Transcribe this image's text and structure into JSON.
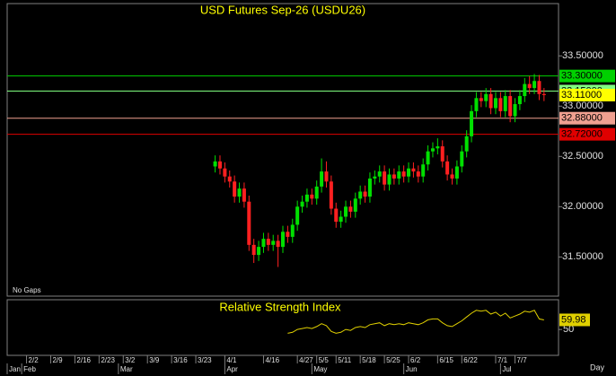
{
  "chart_data": [
    {
      "type": "candlestick",
      "title": "USD Futures Sep-26 (USDU26)",
      "note": "No Gaps",
      "x": [
        43,
        44,
        45,
        46,
        47,
        48,
        49,
        50,
        51,
        52,
        53,
        54,
        55,
        56,
        57,
        58,
        59,
        60,
        61,
        62,
        63,
        64,
        65,
        66,
        67,
        68,
        69,
        70,
        71,
        72,
        73,
        74,
        75,
        76,
        77,
        78,
        79,
        80,
        81,
        82,
        83,
        84,
        85,
        86,
        87,
        88,
        89,
        90,
        91,
        92,
        93,
        94,
        95,
        96,
        97,
        98,
        99,
        100,
        101,
        102,
        103,
        104,
        105,
        106,
        107,
        108,
        109,
        110,
        111
      ],
      "open": [
        32.4,
        32.45,
        32.38,
        32.3,
        32.25,
        32.1,
        32.18,
        32.05,
        31.62,
        31.52,
        31.6,
        31.68,
        31.62,
        31.66,
        31.6,
        31.75,
        31.7,
        31.82,
        32.0,
        32.05,
        32.12,
        32.08,
        32.2,
        32.35,
        32.25,
        31.98,
        31.85,
        31.9,
        32.0,
        31.95,
        32.08,
        32.15,
        32.1,
        32.28,
        32.3,
        32.35,
        32.22,
        32.32,
        32.28,
        32.35,
        32.3,
        32.38,
        32.35,
        32.3,
        32.42,
        32.55,
        32.58,
        32.6,
        32.45,
        32.32,
        32.28,
        32.4,
        32.55,
        32.7,
        32.95,
        33.08,
        33.05,
        33.12,
        32.98,
        33.08,
        32.95,
        33.1,
        32.9,
        33.02,
        33.1,
        33.22,
        33.18,
        33.25,
        33.12
      ],
      "high": [
        32.51,
        32.51,
        32.44,
        32.36,
        32.31,
        32.24,
        32.24,
        32.11,
        31.68,
        31.66,
        31.74,
        31.74,
        31.72,
        31.72,
        31.81,
        31.81,
        31.88,
        32.06,
        32.11,
        32.18,
        32.18,
        32.26,
        32.48,
        32.45,
        32.31,
        32.04,
        31.96,
        32.06,
        32.06,
        32.14,
        32.21,
        32.21,
        32.34,
        32.36,
        32.41,
        32.41,
        32.38,
        32.38,
        32.41,
        32.41,
        32.44,
        32.44,
        32.41,
        32.48,
        32.61,
        32.64,
        32.68,
        32.66,
        32.51,
        32.38,
        32.46,
        32.61,
        32.76,
        33.01,
        33.14,
        33.14,
        33.18,
        33.18,
        33.14,
        33.14,
        33.16,
        33.16,
        33.08,
        33.16,
        33.28,
        33.3,
        33.32,
        33.31,
        33.18
      ],
      "low": [
        32.34,
        32.32,
        32.24,
        32.19,
        32.04,
        32.04,
        31.99,
        31.56,
        31.44,
        31.46,
        31.54,
        31.56,
        31.56,
        31.4,
        31.54,
        31.64,
        31.64,
        31.76,
        31.94,
        31.99,
        32.02,
        32.02,
        32.14,
        32.19,
        31.92,
        31.79,
        31.79,
        31.84,
        31.89,
        31.89,
        32.02,
        32.04,
        32.04,
        32.22,
        32.24,
        32.16,
        32.16,
        32.22,
        32.22,
        32.24,
        32.24,
        32.29,
        32.24,
        32.24,
        32.36,
        32.49,
        32.52,
        32.39,
        32.26,
        32.22,
        32.22,
        32.34,
        32.49,
        32.64,
        32.89,
        32.99,
        32.99,
        32.92,
        32.92,
        32.89,
        32.89,
        32.84,
        32.84,
        32.96,
        33.04,
        33.12,
        33.12,
        33.06,
        33.05
      ],
      "close": [
        32.45,
        32.38,
        32.3,
        32.25,
        32.1,
        32.18,
        32.05,
        31.62,
        31.52,
        31.6,
        31.68,
        31.62,
        31.66,
        31.6,
        31.75,
        31.7,
        31.82,
        32.0,
        32.05,
        32.12,
        32.08,
        32.2,
        32.35,
        32.25,
        31.98,
        31.85,
        31.9,
        32.0,
        31.95,
        32.08,
        32.15,
        32.1,
        32.28,
        32.3,
        32.35,
        32.22,
        32.32,
        32.28,
        32.35,
        32.3,
        32.38,
        32.35,
        32.3,
        32.42,
        32.55,
        32.58,
        32.6,
        32.45,
        32.32,
        32.28,
        32.4,
        32.55,
        32.7,
        32.95,
        33.08,
        33.05,
        33.12,
        32.98,
        33.08,
        32.95,
        33.1,
        32.9,
        33.02,
        33.1,
        33.22,
        33.18,
        33.25,
        33.12,
        33.11
      ],
      "up_color": "#00e000",
      "down_color": "#ff2020",
      "xlim": [
        0,
        114
      ],
      "ylim": [
        31.11,
        34.02
      ],
      "yticks": [
        {
          "value": 31.5,
          "label": "31.50000"
        },
        {
          "value": 32,
          "label": "32.00000"
        },
        {
          "value": 32.5,
          "label": "32.50000"
        },
        {
          "value": 33,
          "label": "33.00000"
        },
        {
          "value": 33.5,
          "label": "33.50000"
        }
      ],
      "xticks": [
        {
          "value": 4,
          "label": "2/2"
        },
        {
          "value": 9,
          "label": "2/9"
        },
        {
          "value": 14,
          "label": "2/16"
        },
        {
          "value": 19,
          "label": "2/23"
        },
        {
          "value": 24,
          "label": "3/2"
        },
        {
          "value": 29,
          "label": "3/9"
        },
        {
          "value": 34,
          "label": "3/16"
        },
        {
          "value": 39,
          "label": "3/23"
        },
        {
          "value": 45,
          "label": "4/1"
        },
        {
          "value": 53,
          "label": "4/16"
        },
        {
          "value": 60,
          "label": "4/27"
        },
        {
          "value": 64,
          "label": "5/5"
        },
        {
          "value": 68,
          "label": "5/11"
        },
        {
          "value": 73,
          "label": "5/18"
        },
        {
          "value": 78,
          "label": "5/25"
        },
        {
          "value": 83,
          "label": "6/2"
        },
        {
          "value": 89,
          "label": "6/15"
        },
        {
          "value": 94,
          "label": "6/22"
        },
        {
          "value": 101,
          "label": "7/1"
        },
        {
          "value": 105,
          "label": "7/7"
        }
      ],
      "month_ticks": [
        {
          "value": 0,
          "label": "Jan"
        },
        {
          "value": 3,
          "label": "Feb"
        },
        {
          "value": 23,
          "label": "Mar"
        },
        {
          "value": 45,
          "label": "Apr"
        },
        {
          "value": 63,
          "label": "May"
        },
        {
          "value": 82,
          "label": "Jun"
        },
        {
          "value": 102,
          "label": "Jul"
        }
      ],
      "x_unit": "Day",
      "levels": [
        {
          "value": 33.3,
          "label": "33.30000",
          "color": "#00d000"
        },
        {
          "value": 33.15,
          "label": "33.15000",
          "color": "#80ff80"
        },
        {
          "value": 32.88,
          "label": "32.88000",
          "color": "#f0a090"
        },
        {
          "value": 32.72,
          "label": "32.72000",
          "color": "#e00000"
        }
      ],
      "last_price": {
        "value": 33.11,
        "label": "33.11000",
        "color": "#ffff00"
      }
    },
    {
      "type": "line",
      "title": "Relative Strength Index",
      "color": "#e0d000",
      "x": [
        58,
        59,
        60,
        61,
        62,
        63,
        64,
        65,
        66,
        67,
        68,
        69,
        70,
        71,
        72,
        73,
        74,
        75,
        76,
        77,
        78,
        79,
        80,
        81,
        82,
        83,
        84,
        85,
        86,
        87,
        88,
        89,
        90,
        91,
        92,
        93,
        94,
        95,
        96,
        97,
        98,
        99,
        100,
        101,
        102,
        103,
        104,
        105,
        106,
        107,
        108,
        109,
        110,
        111
      ],
      "values": [
        46,
        47,
        50,
        51,
        52,
        51,
        53,
        56,
        54,
        48,
        46,
        47,
        50,
        49,
        52,
        53,
        52,
        55,
        56,
        57,
        54,
        56,
        55,
        56,
        55,
        57,
        56,
        55,
        57,
        60,
        61,
        61,
        57,
        54,
        53,
        56,
        59,
        63,
        67,
        70,
        69,
        70,
        66,
        68,
        64,
        67,
        62,
        64,
        66,
        69,
        68,
        70,
        61,
        59.98
      ],
      "xlim": [
        0,
        114
      ],
      "ylim": [
        23,
        81
      ],
      "yticks": [
        50
      ]
    }
  ]
}
